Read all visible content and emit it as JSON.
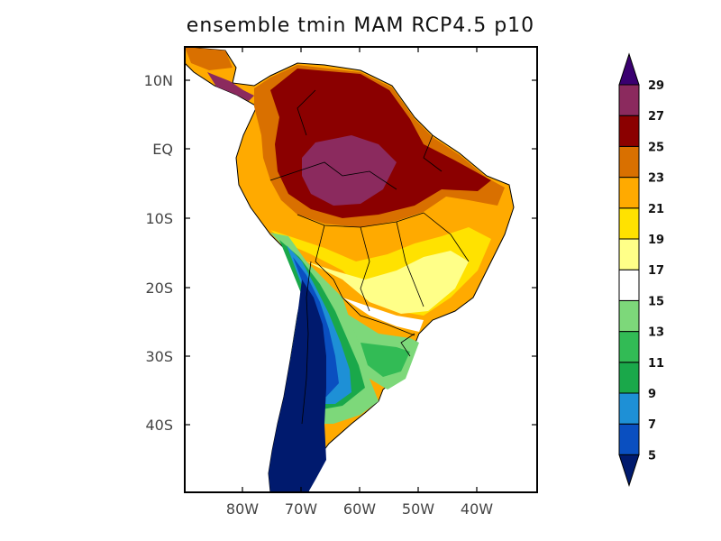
{
  "title": "ensemble tmin MAM RCP4.5 p10",
  "map": {
    "lat_labels": [
      "10N",
      "EQ",
      "10S",
      "20S",
      "30S",
      "40S"
    ],
    "lon_labels": [
      "80W",
      "70W",
      "60W",
      "50W",
      "40W"
    ]
  },
  "colorbar": {
    "levels": [
      "5",
      "7",
      "9",
      "11",
      "13",
      "15",
      "17",
      "19",
      "21",
      "23",
      "25",
      "27",
      "29"
    ],
    "colors": [
      "#001a6e",
      "#0a4fc0",
      "#1e90d6",
      "#1aa84a",
      "#32bb55",
      "#7dd87a",
      "#ffffff",
      "#ffff88",
      "#ffe200",
      "#ffaa00",
      "#d97000",
      "#8b0000",
      "#8b2a5e",
      "#9070d0",
      "#3a0070"
    ]
  }
}
